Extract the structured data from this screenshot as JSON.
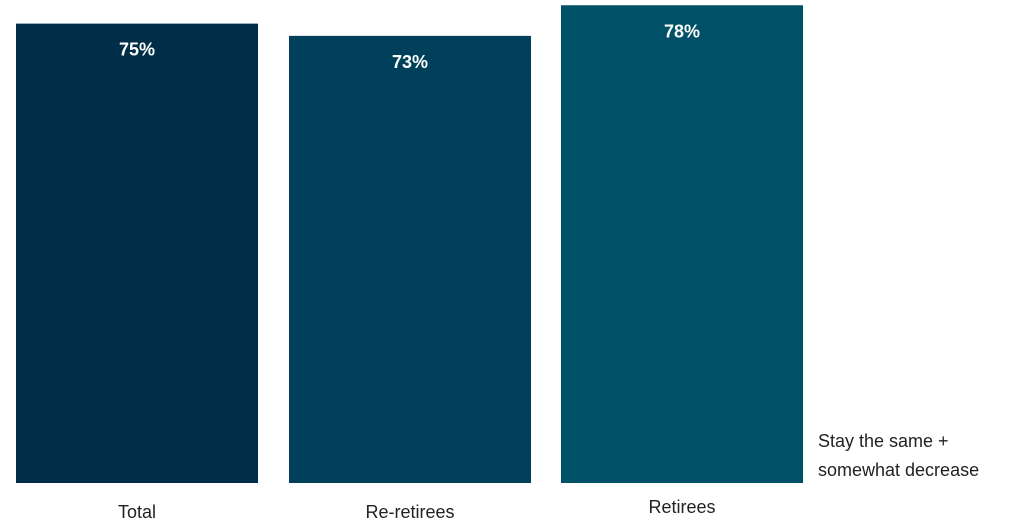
{
  "chart_data": {
    "type": "bar",
    "categories": [
      "Total",
      "Re-retirees",
      "Retirees"
    ],
    "series": [
      {
        "name": "Stay the same + somewhat decrease",
        "values": [
          75,
          73,
          78
        ]
      }
    ],
    "value_labels": [
      "75%",
      "73%",
      "78%"
    ],
    "value_suffix": "%",
    "bar_colors": [
      "#002d47",
      "#00405a",
      "#005068"
    ],
    "ylim": [
      0,
      80
    ],
    "grid": false,
    "legend_position": "right",
    "legend_lines": [
      "Stay the same +",
      "somewhat decrease"
    ],
    "title": "",
    "xlabel": "",
    "ylabel": ""
  }
}
